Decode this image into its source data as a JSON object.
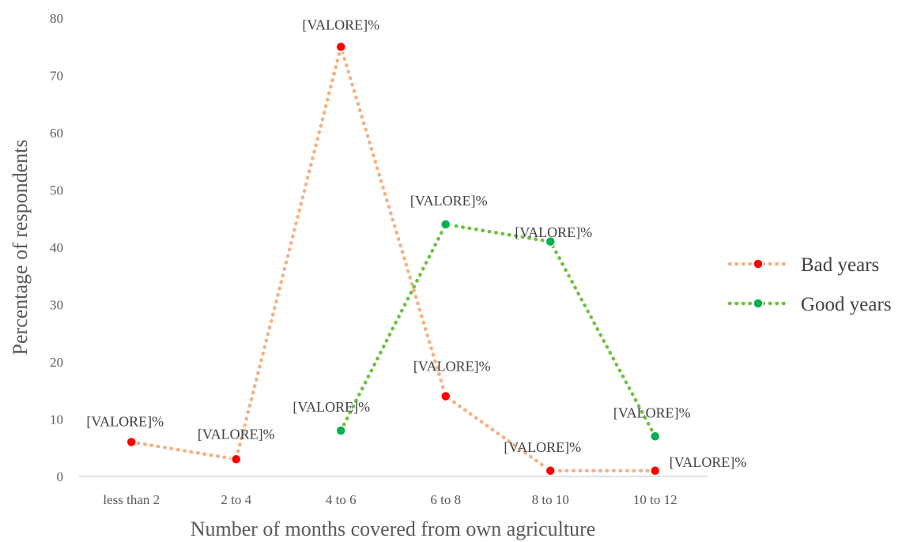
{
  "chart_data": {
    "type": "line",
    "title": "",
    "xlabel": "Number of months covered from own agriculture",
    "ylabel": "Percentage of respondents",
    "ylim": [
      0,
      80
    ],
    "yticks": [
      "0",
      "10",
      "20",
      "30",
      "40",
      "50",
      "60",
      "70",
      "80"
    ],
    "categories": [
      "less than 2",
      "2 to 4",
      "4 to 6",
      "6 to 8",
      "8 to 10",
      "10 to 12"
    ],
    "grid": false,
    "legend_position": "right",
    "series": [
      {
        "name": "Bad years",
        "line_color": "#F4B183",
        "marker_color": "#FF0000",
        "values": [
          6,
          3,
          75,
          14,
          1,
          1
        ],
        "labels": [
          "[VALORE]%",
          "[VALORE]%",
          "[VALORE]%",
          "[VALORE]%",
          "[VALORE]%",
          "[VALORE]%"
        ]
      },
      {
        "name": "Good years",
        "line_color": "#70C040",
        "marker_color": "#00B050",
        "values": [
          null,
          null,
          8,
          44,
          41,
          7
        ],
        "labels": [
          "",
          "",
          "[VALORE]%",
          "[VALORE]%",
          "[VALORE]%",
          "[VALORE]%"
        ]
      }
    ]
  }
}
